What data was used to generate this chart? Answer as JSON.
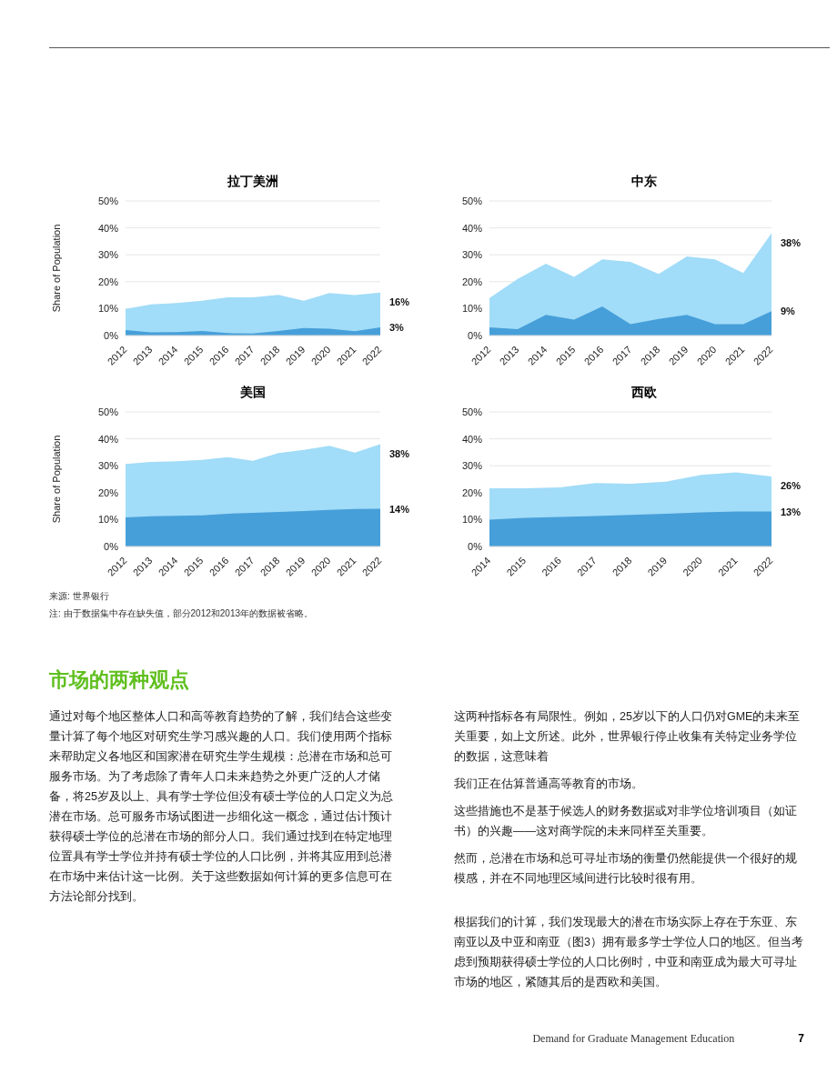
{
  "chart_data": [
    {
      "type": "area",
      "title": "拉丁美洲",
      "ylabel": "Share of Population",
      "categories": [
        "2012",
        "2013",
        "2014",
        "2015",
        "2016",
        "2017",
        "2018",
        "2019",
        "2020",
        "2021",
        "2022"
      ],
      "series": [
        {
          "color": "#a1dcf8",
          "values": [
            9.9,
            11.6,
            12.1,
            12.9,
            14.2,
            14.2,
            15.1,
            12.9,
            15.8,
            15,
            16
          ],
          "value_labels": [
            null,
            null,
            null,
            null,
            null,
            null,
            null,
            null,
            null,
            null,
            "16%"
          ]
        },
        {
          "color": "#479fd9",
          "values": [
            2,
            1.2,
            1.3,
            1.7,
            0.9,
            0.8,
            1.7,
            2.8,
            2.5,
            1.6,
            3
          ],
          "value_labels": [
            null,
            null,
            null,
            null,
            null,
            null,
            null,
            null,
            null,
            null,
            "3%"
          ]
        }
      ],
      "ylim": [
        0,
        50
      ],
      "yticks": [
        {
          "value": 0,
          "label": "0%"
        },
        {
          "value": 10,
          "label": "10%"
        },
        {
          "value": 20,
          "label": "20%"
        },
        {
          "value": 30,
          "label": "30%"
        },
        {
          "value": 40,
          "label": "40%"
        },
        {
          "value": 50,
          "label": "50%"
        }
      ],
      "grid": "y"
    },
    {
      "type": "area",
      "title": "中东",
      "categories": [
        "2012",
        "2013",
        "2014",
        "2015",
        "2016",
        "2017",
        "2018",
        "2019",
        "2020",
        "2021",
        "2022"
      ],
      "series": [
        {
          "color": "#a1dcf8",
          "values": [
            13.9,
            21,
            26.7,
            21.8,
            28.3,
            27.4,
            22.9,
            29.4,
            28.3,
            23.2,
            38
          ],
          "value_labels": [
            null,
            null,
            null,
            null,
            null,
            null,
            null,
            null,
            null,
            null,
            "38%"
          ]
        },
        {
          "color": "#479fd9",
          "values": [
            3,
            2.4,
            7.7,
            5.9,
            10.8,
            4.2,
            6.2,
            7.7,
            4.2,
            4.2,
            9
          ],
          "value_labels": [
            null,
            null,
            null,
            null,
            null,
            null,
            null,
            null,
            null,
            null,
            "9%"
          ]
        }
      ],
      "ylim": [
        0,
        50
      ],
      "yticks": [
        {
          "value": 0,
          "label": "0%"
        },
        {
          "value": 10,
          "label": "10%"
        },
        {
          "value": 20,
          "label": "20%"
        },
        {
          "value": 30,
          "label": "30%"
        },
        {
          "value": 40,
          "label": "40%"
        },
        {
          "value": 50,
          "label": "50%"
        }
      ],
      "grid": "y"
    },
    {
      "type": "area",
      "title": "美国",
      "ylabel": "Share of Population",
      "categories": [
        "2012",
        "2013",
        "2014",
        "2015",
        "2016",
        "2017",
        "2018",
        "2019",
        "2020",
        "2021",
        "2022"
      ],
      "series": [
        {
          "color": "#a1dcf8",
          "values": [
            30.7,
            31.4,
            31.7,
            32.2,
            33.2,
            31.8,
            34.7,
            35.9,
            37.4,
            34.9,
            38
          ],
          "value_labels": [
            null,
            null,
            null,
            null,
            null,
            null,
            null,
            null,
            null,
            null,
            "38%"
          ]
        },
        {
          "color": "#479fd9",
          "values": [
            10.8,
            11.2,
            11.4,
            11.6,
            12.2,
            12.5,
            12.8,
            13.2,
            13.6,
            13.9,
            14
          ],
          "value_labels": [
            null,
            null,
            null,
            null,
            null,
            null,
            null,
            null,
            null,
            null,
            "14%"
          ]
        }
      ],
      "ylim": [
        0,
        50
      ],
      "yticks": [
        {
          "value": 0,
          "label": "0%"
        },
        {
          "value": 10,
          "label": "10%"
        },
        {
          "value": 20,
          "label": "20%"
        },
        {
          "value": 30,
          "label": "30%"
        },
        {
          "value": 40,
          "label": "40%"
        },
        {
          "value": 50,
          "label": "50%"
        }
      ],
      "grid": "y"
    },
    {
      "type": "area",
      "title": "西欧",
      "categories": [
        "2014",
        "2015",
        "2016",
        "2017",
        "2018",
        "2019",
        "2020",
        "2021",
        "2022"
      ],
      "series": [
        {
          "color": "#a1dcf8",
          "values": [
            21.6,
            21.6,
            22,
            23.6,
            23.3,
            24.1,
            26.6,
            27.5,
            26
          ],
          "value_labels": [
            null,
            null,
            null,
            null,
            null,
            null,
            null,
            null,
            "26%"
          ]
        },
        {
          "color": "#479fd9",
          "values": [
            10,
            10.6,
            11,
            11.3,
            11.7,
            12.2,
            12.7,
            13,
            13
          ],
          "value_labels": [
            null,
            null,
            null,
            null,
            null,
            null,
            null,
            null,
            "13%"
          ]
        }
      ],
      "ylim": [
        0,
        50
      ],
      "yticks": [
        {
          "value": 0,
          "label": "0%"
        },
        {
          "value": 10,
          "label": "10%"
        },
        {
          "value": 20,
          "label": "20%"
        },
        {
          "value": 30,
          "label": "30%"
        },
        {
          "value": 40,
          "label": "40%"
        },
        {
          "value": 50,
          "label": "50%"
        }
      ],
      "grid": "y",
      "annotations": [
        "来源: 世界银行",
        "注: 由于数据集中存在缺失值，部分2012和2013年的数据被省略。"
      ]
    },
    {
      "type": "other",
      "title": "市场的两种观点",
      "annotations": [
        "通过对每个地区整体人口和高等教育趋势的了解，我们结合这些变量计算了每个地区对研究生学习感兴趣的人口。我们使用两个指标来帮助定义各地区和国家潜在研究生学生规模：总潜在市场和总可服务市场。为了考虑除了青年人口未来趋势之外更广泛的人才储备，将25岁及以上、具有学士学位但没有硕士学位的人口定义为总潜在市场。总可服务市场试图进一步细化这一概念，通过估计预计获得硕士学位的总潜在市场的部分人口。我们通过找到在特定地理位置具有学士学位并持有硕士学位的人口比例，并将其应用到总潜在市场中来估计这一比例。关于这些数据如何计算的更多信息可在方法论部分找到。",
        "这两种指标各有局限性。例如，25岁以下的人口仍对GME的未来至关重要，如上文所述。此外，世界银行停止收集有关特定业务学位的数据，这意味着",
        "我们正在估算普通高等教育的市场。",
        "这些措施也不是基于候选人的财务数据或对非学位培训项目（如证书）的兴趣——这对商学院的未来同样至关重要。",
        "然而，总潜在市场和总可寻址市场的衡量仍然能提供一个很好的规模感，并在不同地理区域间进行比较时很有用。",
        "根据我们的计算，我们发现最大的潜在市场实际上存在于东亚、东南亚以及中亚和南亚（图3）拥有最多学士学位人口的地区。但当考虑到预期获得硕士学位的人口比例时，中亚和南亚成为最大可寻址市场的地区，紧随其后的是西欧和美国。",
        "Demand for Graduate Management Education",
        "7"
      ]
    }
  ]
}
